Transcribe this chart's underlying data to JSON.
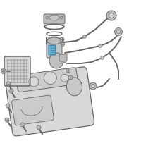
{
  "background_color": "#ffffff",
  "line_color": "#666666",
  "highlight_fill": "#6db6d8",
  "highlight_edge": "#3a8ab0",
  "gray_light": "#d8d8d8",
  "gray_mid": "#bbbbbb",
  "gray_dark": "#888888",
  "fig_width": 2.0,
  "fig_height": 2.0,
  "dpi": 100
}
